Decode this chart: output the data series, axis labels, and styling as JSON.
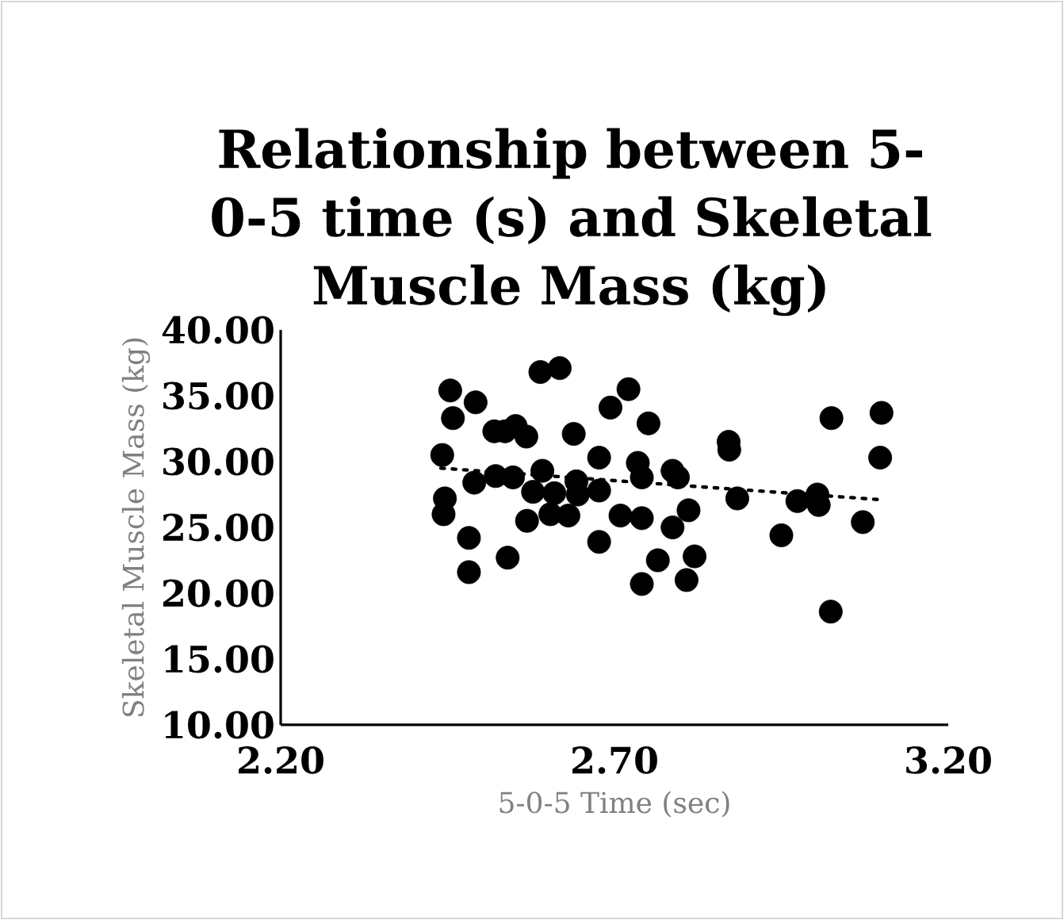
{
  "chart_data": {
    "type": "scatter",
    "title": "Relationship between 5-0-5 time (s) and Skeletal Muscle Mass (kg)",
    "xlabel": "5-0-5 Time (sec)",
    "ylabel": "Skeletal Muscle Mass (kg)",
    "xlim": [
      2.2,
      3.2
    ],
    "xticks": [
      {
        "value": 2.2,
        "label": "2.20"
      },
      {
        "value": 2.7,
        "label": "2.70"
      },
      {
        "value": 3.2,
        "label": "3.20"
      }
    ],
    "ylim": [
      10,
      40
    ],
    "yticks": [
      {
        "value": 10,
        "label": "10.00"
      },
      {
        "value": 15,
        "label": "15.00"
      },
      {
        "value": 20,
        "label": "20.00"
      },
      {
        "value": 25,
        "label": "25.00"
      },
      {
        "value": 30,
        "label": "30.00"
      },
      {
        "value": 35,
        "label": "35.00"
      },
      {
        "value": 40,
        "label": "40.00"
      }
    ],
    "grid": false,
    "marker": "circle",
    "series": [
      {
        "color": "#000000",
        "x": [
          2.454,
          2.458,
          2.442,
          2.446,
          2.444,
          2.492,
          2.482,
          2.482,
          2.49,
          2.52,
          2.536,
          2.552,
          2.568,
          2.522,
          2.548,
          2.54,
          2.569,
          2.578,
          2.592,
          2.589,
          2.618,
          2.61,
          2.604,
          2.631,
          2.643,
          2.645,
          2.639,
          2.677,
          2.677,
          2.677,
          2.694,
          2.721,
          2.709,
          2.735,
          2.741,
          2.741,
          2.741,
          2.751,
          2.765,
          2.787,
          2.795,
          2.787,
          2.811,
          2.808,
          2.82,
          2.871,
          2.872,
          2.884,
          2.95,
          2.974,
          3.004,
          3.006,
          3.025,
          3.024,
          3.072,
          3.1,
          3.098
        ],
        "values": [
          35.4,
          33.3,
          30.5,
          27.2,
          26.0,
          34.5,
          24.2,
          21.6,
          28.4,
          32.3,
          32.3,
          32.7,
          31.9,
          28.9,
          28.8,
          22.7,
          25.5,
          27.7,
          29.3,
          36.8,
          37.1,
          27.6,
          26.0,
          25.9,
          28.5,
          27.5,
          32.1,
          30.3,
          27.8,
          23.9,
          34.1,
          35.5,
          25.9,
          29.9,
          28.8,
          25.7,
          20.7,
          32.9,
          22.5,
          29.3,
          28.8,
          25.0,
          26.3,
          21.0,
          22.8,
          31.5,
          30.9,
          27.2,
          24.4,
          27.0,
          27.5,
          26.7,
          33.3,
          18.6,
          25.4,
          33.7,
          30.3
        ]
      },
      {
        "type": "line",
        "color": "#000000",
        "marker": "none",
        "line_style": "dotted",
        "x": [
          2.44,
          3.1
        ],
        "values": [
          29.5,
          27.1
        ]
      }
    ]
  }
}
